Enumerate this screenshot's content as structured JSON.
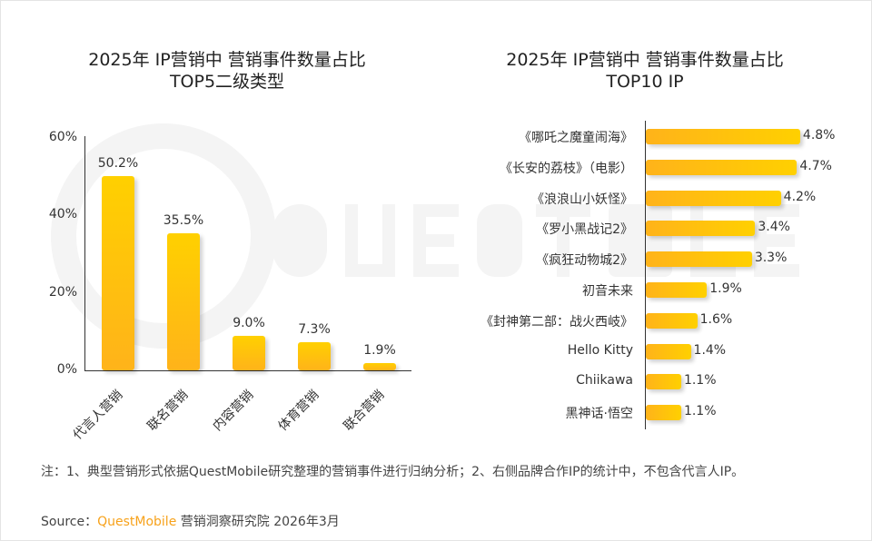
{
  "chart_data": [
    {
      "type": "bar",
      "title": "2025年 IP营销中 营销事件数量占比 TOP5二级类型",
      "title_lines": [
        "2025年 IP营销中 营销事件数量占比",
        "TOP5二级类型"
      ],
      "categories": [
        "代言人营销",
        "联名营销",
        "内容营销",
        "体育营销",
        "联合营销"
      ],
      "values": [
        50.2,
        35.5,
        9.0,
        7.3,
        1.9
      ],
      "data_labels": [
        "50.2%",
        "35.5%",
        "9.0%",
        "7.3%",
        "1.9%"
      ],
      "yticks": [
        "0%",
        "20%",
        "40%",
        "60%"
      ],
      "ylim": [
        0,
        60
      ],
      "grid": false,
      "bar_color": "#ffc20e"
    },
    {
      "type": "bar",
      "orientation": "horizontal",
      "title": "2025年 IP营销中 营销事件数量占比 TOP10 IP",
      "title_lines": [
        "2025年 IP营销中 营销事件数量占比",
        "TOP10 IP"
      ],
      "categories": [
        "《哪吒之魔童闹海》",
        "《长安的荔枝》（电影）",
        "《浪浪山小妖怪》",
        "《罗小黑战记2》",
        "《疯狂动物城2》",
        "初音未来",
        "《封神第二部：战火西岐》",
        "Hello Kitty",
        "Chiikawa",
        "黑神话·悟空"
      ],
      "values": [
        4.8,
        4.7,
        4.2,
        3.4,
        3.3,
        1.9,
        1.6,
        1.4,
        1.1,
        1.1
      ],
      "data_labels": [
        "4.8%",
        "4.7%",
        "4.2%",
        "3.4%",
        "3.3%",
        "1.9%",
        "1.6%",
        "1.4%",
        "1.1%",
        "1.1%"
      ],
      "grid": false,
      "bar_color": "#ffc20e"
    }
  ],
  "watermark": "QUESTMOBILE",
  "footer": {
    "note": "注：1、典型营销形式依据QuestMobile研究整理的营销事件进行归纳分析；2、右侧品牌合作IP的统计中，不包含代言人IP。",
    "source_prefix": "Source：",
    "source_brand": "QuestMobile",
    "source_rest": " 营销洞察研究院 2026年3月"
  }
}
